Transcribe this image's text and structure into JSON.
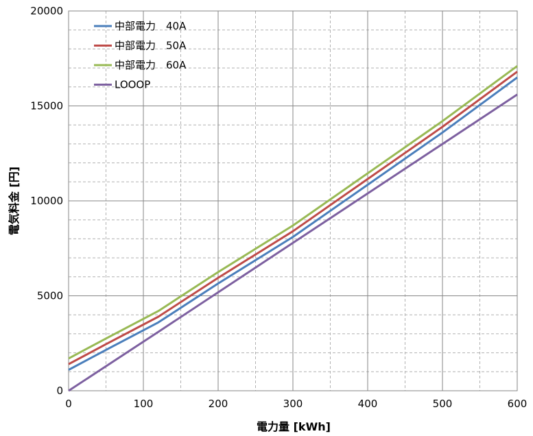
{
  "chart_data": {
    "type": "line",
    "title": "",
    "xlabel": "電力量 [kWh]",
    "ylabel": "電気料金 [円]",
    "xlim": [
      0,
      600
    ],
    "ylim": [
      0,
      20000
    ],
    "x_ticks": [
      0,
      100,
      200,
      300,
      400,
      500,
      600
    ],
    "y_ticks": [
      0,
      5000,
      10000,
      15000,
      20000
    ],
    "x_tick_labels": [
      "0",
      "100",
      "200",
      "300",
      "400",
      "500",
      "600"
    ],
    "y_tick_labels": [
      "0",
      "5000",
      "10000",
      "15000",
      "20000"
    ],
    "grid": true,
    "legend": "top-left",
    "series": [
      {
        "name": "中部電力　40A",
        "color": "#4A7EBB",
        "x": [
          0,
          50,
          120,
          200,
          300,
          400,
          500,
          600
        ],
        "y": [
          1100,
          2150,
          3600,
          5650,
          8100,
          10850,
          13600,
          16500
        ]
      },
      {
        "name": "中部電力　50A",
        "color": "#BE4B48",
        "x": [
          0,
          50,
          120,
          200,
          300,
          400,
          500,
          600
        ],
        "y": [
          1400,
          2450,
          3900,
          5950,
          8400,
          11150,
          13900,
          16800
        ]
      },
      {
        "name": "中部電力　60A",
        "color": "#98B954",
        "x": [
          0,
          50,
          120,
          200,
          300,
          400,
          500,
          600
        ],
        "y": [
          1700,
          2750,
          4200,
          6250,
          8700,
          11450,
          14200,
          17100
        ]
      },
      {
        "name": "LOOOP",
        "color": "#7D60A0",
        "x": [
          0,
          120,
          600
        ],
        "y": [
          0,
          3100,
          15600
        ]
      }
    ]
  }
}
